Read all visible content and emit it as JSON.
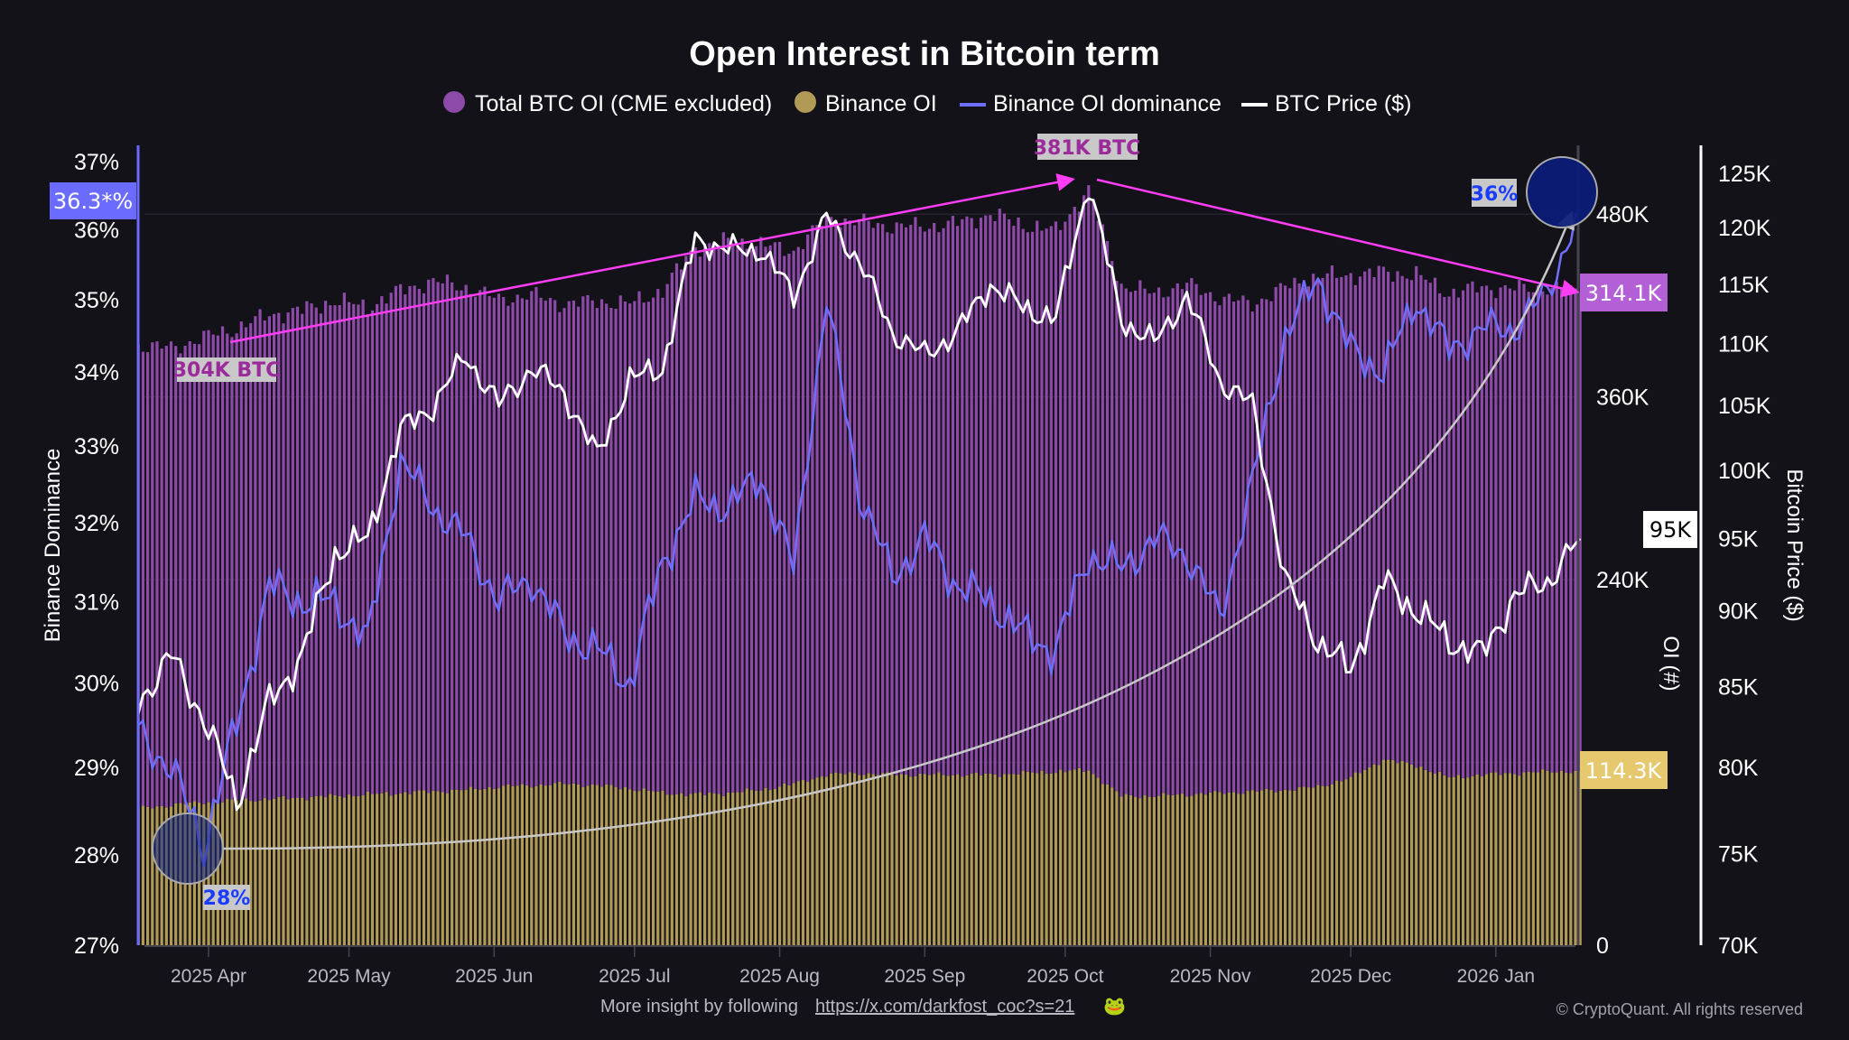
{
  "chart_data": {
    "type": "bar+line",
    "title": "Open Interest in Bitcoin term",
    "legend": [
      {
        "name": "Total BTC OI (CME excluded)",
        "color": "#8e4aa8",
        "marker": "dot"
      },
      {
        "name": "Binance OI",
        "color": "#b09a55",
        "marker": "dot"
      },
      {
        "name": "Binance OI dominance",
        "color": "#6f6fff",
        "marker": "line"
      },
      {
        "name": "BTC Price ($)",
        "color": "#ffffff",
        "marker": "line"
      }
    ],
    "legend_placement": "top-center",
    "axes": {
      "left": {
        "label": "Binance Dominance",
        "scale": "log",
        "range": [
          27,
          37
        ],
        "ticks": [
          "27%",
          "28%",
          "29%",
          "30%",
          "31%",
          "32%",
          "33%",
          "34%",
          "35%",
          "36%",
          "37%"
        ]
      },
      "right_oi": {
        "label": "OI (#)",
        "scale": "linear",
        "range": [
          0,
          526000
        ],
        "ticks": [
          "0",
          "240K",
          "360K",
          "480K"
        ]
      },
      "right_price": {
        "label": "Bitcoin Price ($)",
        "scale": "log",
        "range": [
          70000,
          125000
        ],
        "ticks": [
          "70K",
          "75K",
          "80K",
          "85K",
          "90K",
          "95K",
          "100K",
          "105K",
          "110K",
          "115K",
          "120K",
          "125K"
        ]
      },
      "x": {
        "type": "date",
        "range": [
          "2025-03-17",
          "2026-01-19"
        ],
        "ticks": [
          "2025 Apr",
          "2025 May",
          "2025 Jun",
          "2025 Jul",
          "2025 Aug",
          "2025 Sep",
          "2025 Oct",
          "2025 Nov",
          "2025 Dec",
          "2026 Jan"
        ]
      }
    },
    "grid": "horizontal faint",
    "stacked_bars": true,
    "dates": [
      "2025-03-17",
      "2025-03-24",
      "2025-03-31",
      "2025-04-07",
      "2025-04-14",
      "2025-04-21",
      "2025-04-28",
      "2025-05-05",
      "2025-05-12",
      "2025-05-19",
      "2025-05-26",
      "2025-06-02",
      "2025-06-09",
      "2025-06-16",
      "2025-06-23",
      "2025-06-30",
      "2025-07-07",
      "2025-07-14",
      "2025-07-21",
      "2025-07-28",
      "2025-08-04",
      "2025-08-11",
      "2025-08-18",
      "2025-08-25",
      "2025-09-01",
      "2025-09-08",
      "2025-09-15",
      "2025-09-22",
      "2025-09-29",
      "2025-10-06",
      "2025-10-13",
      "2025-10-20",
      "2025-10-27",
      "2025-11-03",
      "2025-11-10",
      "2025-11-17",
      "2025-11-24",
      "2025-12-01",
      "2025-12-08",
      "2025-12-15",
      "2025-12-22",
      "2025-12-29",
      "2026-01-05",
      "2026-01-12",
      "2026-01-19"
    ],
    "series": [
      {
        "name": "Total BTC OI (CME excluded)",
        "unit": "K BTC",
        "values": [
          304,
          300,
          305,
          310,
          318,
          320,
          325,
          320,
          330,
          335,
          330,
          320,
          322,
          315,
          318,
          318,
          330,
          360,
          362,
          358,
          350,
          365,
          362,
          360,
          360,
          362,
          368,
          360,
          355,
          381,
          335,
          330,
          335,
          325,
          320,
          330,
          335,
          330,
          320,
          322,
          318,
          320,
          318,
          318,
          314.1
        ]
      },
      {
        "name": "Binance OI",
        "unit": "K BTC",
        "values": [
          90,
          92,
          94,
          95,
          96,
          97,
          98,
          99,
          100,
          101,
          102,
          104,
          105,
          106,
          105,
          103,
          100,
          99,
          100,
          102,
          106,
          112,
          113,
          112,
          112,
          112,
          112,
          113,
          114,
          115,
          98,
          98,
          99,
          100,
          101,
          102,
          104,
          110,
          122,
          118,
          110,
          112,
          113,
          114,
          114.3
        ]
      },
      {
        "name": "Binance OI dominance",
        "unit": "%",
        "values": [
          29.4,
          29.0,
          28.1,
          29.5,
          31.2,
          31.0,
          31.0,
          30.5,
          32.8,
          32.2,
          31.8,
          31.0,
          31.3,
          30.6,
          30.4,
          30.0,
          31.5,
          32.3,
          32.2,
          32.6,
          31.4,
          35.0,
          32.4,
          31.3,
          31.8,
          31.2,
          31.0,
          30.6,
          30.4,
          31.6,
          31.4,
          31.8,
          31.6,
          30.8,
          32.5,
          34.5,
          35.3,
          34.3,
          34.0,
          35.0,
          34.3,
          34.6,
          34.6,
          35.1,
          36.3
        ]
      },
      {
        "name": "BTC Price ($)",
        "unit": "USD",
        "values": [
          84000,
          87000,
          83000,
          78000,
          84000,
          87000,
          94000,
          95000,
          103000,
          105000,
          109000,
          105000,
          108000,
          106000,
          101000,
          107000,
          108000,
          119000,
          118000,
          118000,
          114000,
          121000,
          117000,
          111000,
          109000,
          111000,
          115000,
          113000,
          112000,
          124000,
          112000,
          110000,
          114000,
          107000,
          105000,
          92000,
          88000,
          86000,
          92000,
          90000,
          88000,
          87000,
          91000,
          92000,
          95000
        ]
      }
    ],
    "annotations": {
      "start_oi": "304K BTC",
      "peak_oi": "381K BTC",
      "dom_low": "28%",
      "dom_high": "36%",
      "last_dominance": "36.3*%",
      "last_total_oi": "314.1K",
      "last_binance_oi": "114.3K",
      "last_price": "95K"
    }
  },
  "colors": {
    "background": "#131219",
    "total_oi": "#8e4aa8",
    "binance_oi": "#b09a55",
    "dominance": "#6f6fff",
    "price": "#ffffff",
    "trend_arrow": "#ff3df5",
    "curve_arrow": "#c8c8c8",
    "tag_total": "#b35fd6",
    "tag_binance": "#e6c96e",
    "tag_dominance": "#6b6bff"
  },
  "footer": {
    "prefix": "More insight by following",
    "link": "https://x.com/darkfost_coc?s=21",
    "emoji": "🐸",
    "copyright": "© CryptoQuant. All rights reserved"
  }
}
